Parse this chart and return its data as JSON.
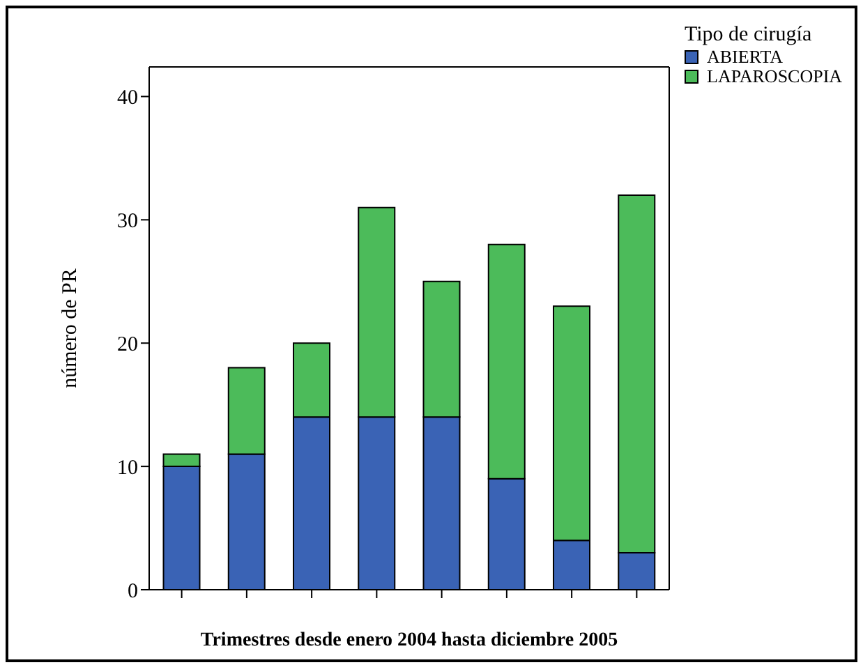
{
  "chart_data": {
    "type": "bar",
    "stacked": true,
    "xlabel": "Trimestres desde enero 2004 hasta diciembre 2005",
    "ylabel": "número de PR",
    "legend_title": "Tipo de cirugía",
    "legend": "top right",
    "categories": [
      null,
      null,
      null,
      null,
      null,
      null,
      null,
      null
    ],
    "series": [
      {
        "name": "ABIERTA",
        "color": "#3a63b5",
        "values": [
          10,
          11,
          14,
          14,
          14,
          9,
          4,
          3
        ]
      },
      {
        "name": "LAPAROSCOPIA",
        "color": "#4cbb5a",
        "values": [
          1,
          7,
          6,
          17,
          11,
          19,
          19,
          29
        ]
      }
    ],
    "ylim": [
      0,
      42.4
    ],
    "yticks": [
      0,
      10,
      20,
      30,
      40
    ]
  }
}
